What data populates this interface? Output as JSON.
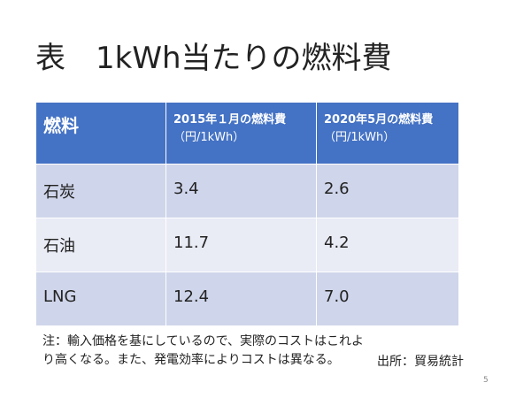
{
  "slide": {
    "title": "表　1kWh当たりの燃料費",
    "page_number": "5"
  },
  "table": {
    "columns": [
      {
        "label": "燃料",
        "sub": ""
      },
      {
        "label": "2015年１月の燃料費",
        "sub": "（円/1kWh）"
      },
      {
        "label": "2020年5月の燃料費",
        "sub": "（円/1kWh）"
      }
    ],
    "rows": [
      {
        "fuel": "石炭",
        "cost_2015_01": "3.4",
        "cost_2020_05": "2.6"
      },
      {
        "fuel": "石油",
        "cost_2015_01": "11.7",
        "cost_2020_05": "4.2"
      },
      {
        "fuel": "LNG",
        "cost_2015_01": "12.4",
        "cost_2020_05": "7.0"
      }
    ]
  },
  "note": "注：輸入価格を基にしているので、実際のコストはこれより高くなる。また、発電効率によりコストは異なる。",
  "source": "出所：貿易統計",
  "colors": {
    "header_bg": "#4472c4",
    "row_odd_bg": "#cfd5ea",
    "row_even_bg": "#e9ebf5"
  }
}
